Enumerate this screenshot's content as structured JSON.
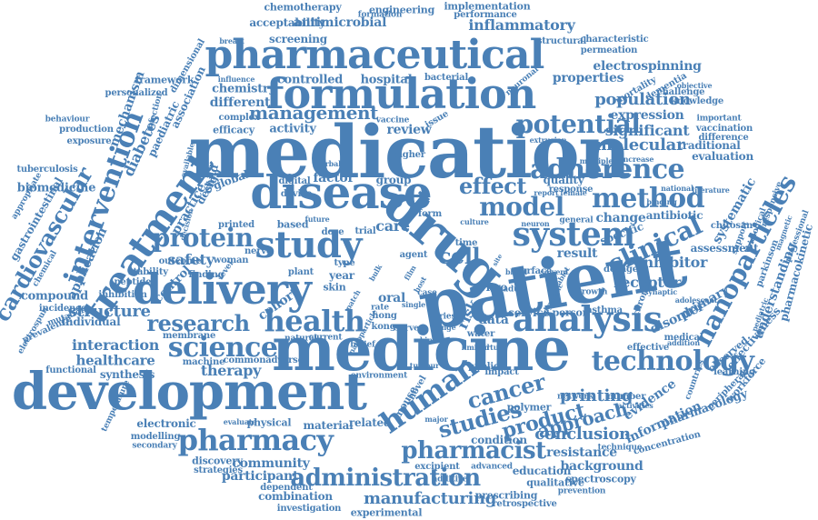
{
  "colors": {
    "word": "#4a80b6",
    "background": "#ffffff"
  },
  "words": [
    "medication",
    "patient",
    "drug",
    "medicine",
    "development",
    "formulation",
    "pharmaceutical",
    "disease",
    "treatment",
    "delivery",
    "study",
    "analysis",
    "system",
    "health",
    "protein",
    "pharmacy",
    "science",
    "human",
    "intervention",
    "adherence",
    "technology",
    "nanoparticles",
    "potential",
    "method",
    "model",
    "clinical",
    "effect",
    "pharmacist",
    "administration",
    "management",
    "research",
    "cardiovascular",
    "studies",
    "product",
    "cancer",
    "approach",
    "manufacturing",
    "inflammatory",
    "antimicrobial",
    "chemotherapy",
    "implementation",
    "performance",
    "engineering",
    "acceptability",
    "screening",
    "structural",
    "characteristic",
    "permeation",
    "electrospinning",
    "properties",
    "population",
    "molecular",
    "significant",
    "expression",
    "inhibitor",
    "receptor",
    "structure",
    "interaction",
    "healthcare",
    "therapy",
    "synthesis",
    "individual",
    "compound",
    "application",
    "diabetes",
    "mechanism",
    "paediatric",
    "association",
    "chemistry",
    "different",
    "complex",
    "activity",
    "review",
    "factor",
    "group",
    "quality",
    "response",
    "evaluation",
    "traditional",
    "knowledge",
    "dementia",
    "mortality",
    "framework",
    "personalized",
    "dimensional",
    "production",
    "tuberculosis",
    "biomedicine",
    "gastrointestinal",
    "safety",
    "practice",
    "design",
    "care",
    "cell",
    "result",
    "data",
    "service",
    "person",
    "asthma",
    "disorder",
    "primary",
    "assessment",
    "antibiotic",
    "systematic",
    "understanding",
    "pharmacokinetic",
    "parkinson",
    "chitosan",
    "effectiveness",
    "pharmacology",
    "evidence",
    "information",
    "conclusion",
    "printing",
    "resistance",
    "background",
    "education",
    "qualitative",
    "spectroscopy",
    "prescribing",
    "experimental",
    "combination",
    "investigation",
    "community",
    "participant",
    "discovery",
    "strategies",
    "electronic",
    "material",
    "related",
    "condition",
    "advanced",
    "polymer",
    "impact",
    "controlled",
    "hospital",
    "bacterial",
    "change",
    "specific",
    "global",
    "cohort",
    "control",
    "stability",
    "peptide",
    "inhibition",
    "incidence",
    "prevalence",
    "modelling",
    "secondary",
    "physical",
    "common",
    "adverse",
    "machine",
    "membrane",
    "environment",
    "mouse",
    "novel",
    "vitro",
    "oral",
    "year",
    "trial",
    "dose",
    "skin",
    "type",
    "based",
    "plant",
    "time",
    "effective",
    "workforce",
    "peripheral",
    "observed",
    "vaccination",
    "difference",
    "important",
    "challenge",
    "objective",
    "neuronal",
    "formation",
    "efficacy",
    "vaccine",
    "issue",
    "higher",
    "digital",
    "device",
    "finding",
    "outcome",
    "printed",
    "nerve",
    "woman",
    "child",
    "learning",
    "network",
    "number",
    "prevention",
    "technique",
    "retrospective",
    "dependent",
    "additive",
    "excipient",
    "water",
    "public",
    "kong",
    "hong",
    "survey",
    "form",
    "agent",
    "surface",
    "dosage",
    "general",
    "adult",
    "growth",
    "case",
    "rate",
    "risk",
    "level",
    "exposure",
    "functional",
    "temperature",
    "electrospun",
    "mutation",
    "chemical",
    "appropriate",
    "behaviour",
    "infection",
    "available",
    "decision",
    "natural",
    "current",
    "belief",
    "kinase",
    "series",
    "range",
    "limited",
    "virtual",
    "future",
    "herbal",
    "extrusion",
    "multiple",
    "increase",
    "national",
    "literature",
    "female",
    "report",
    "binding",
    "adolescent",
    "synaptic",
    "chronic",
    "medical",
    "addition",
    "activities",
    "countries",
    "support",
    "biological",
    "responsive",
    "professional",
    "magnetic",
    "pediatric",
    "concentration",
    "evaluate",
    "culture",
    "blood",
    "neuron",
    "solvent",
    "major",
    "single",
    "tumour",
    "breast",
    "influence",
    "dynamic",
    "tablet",
    "nanoparticle",
    "patch",
    "bulk",
    "film",
    "host",
    "site",
    "team",
    "drug release"
  ]
}
